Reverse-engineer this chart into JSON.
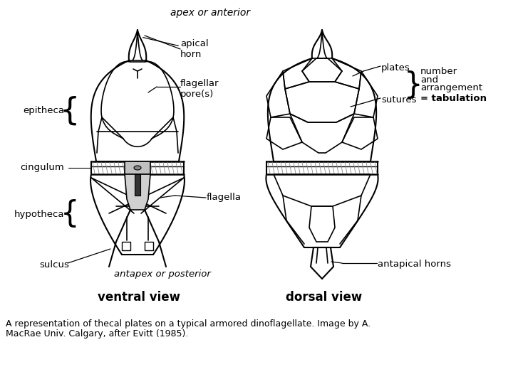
{
  "bg_color": "#ffffff",
  "fig_width": 7.2,
  "fig_height": 5.4,
  "caption_line1": "A representation of thecal plates on a typical armored dinoflagellate. Image by A.",
  "caption_line2": "MacRae Univ. Calgary, after Evitt (1985).",
  "title_text": "apex or anterior",
  "ventral_label": "ventral view",
  "dorsal_label": "dorsal view",
  "lbl_apical_horn": "apical\nhorn",
  "lbl_flagellar_pore": "flagellar\npore(s)",
  "lbl_epitheca": "epitheca",
  "lbl_cingulum": "cingulum",
  "lbl_hypotheca": "hypotheca",
  "lbl_sulcus": "sulcus",
  "lbl_flagella": "flagella",
  "lbl_antapex": "antapex or posterior",
  "lbl_plates": "plates",
  "lbl_sutures": "sutures",
  "lbl_antapical_horns": "antapical horns",
  "lbl_number": "number",
  "lbl_and": "and",
  "lbl_arrangement": "arrangement",
  "lbl_tabulation": "= tabulation"
}
